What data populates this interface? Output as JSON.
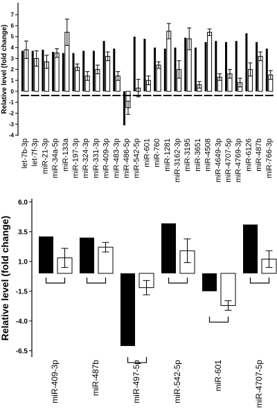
{
  "chart_data": [
    {
      "type": "bar",
      "ylabel": "Relative level (fold change)",
      "ylim": [
        -4,
        7
      ],
      "yticks": [
        "-4",
        "-3",
        "-2",
        "-1",
        "0",
        "1",
        "2",
        "3",
        "4",
        "5",
        "6",
        "7"
      ],
      "categories": [
        "let-7b-3p",
        "let-7f-3p",
        "miR-21-3p",
        "miR-34a-5p",
        "miR-133a",
        "miR-197-3p",
        "miR-324-3p",
        "miR-331-3p",
        "miR-409-3p",
        "miR-483-3p",
        "miR-486-5p",
        "miR-542-5p",
        "miR-601",
        "miR-760",
        "miR-1281",
        "miR-3162-3p",
        "miR-3195",
        "miR-3651",
        "miR-4508",
        "miR-4649-3p",
        "miR-4707-5p",
        "miR-4769-3p",
        "miR-6126",
        "miR-487b",
        "miR-766-3p"
      ],
      "series": [
        {
          "values": [
            3.7,
            3.7,
            3.8,
            3.6,
            3.5,
            3.5,
            3.7,
            3.7,
            4.6,
            3.9,
            -3.1,
            5.0,
            4.8,
            4.0,
            3.9,
            4.0,
            4.9,
            4.0,
            4.5,
            4.6,
            4.5,
            4.6,
            5.3,
            4.5,
            3.9
          ]
        },
        {
          "values": [
            3.8,
            3.0,
            2.7,
            3.5,
            5.4,
            2.2,
            1.4,
            2.0,
            3.2,
            1.4,
            -1.5,
            0.3,
            1.0,
            2.4,
            5.5,
            2.0,
            4.8,
            0.6,
            5.4,
            1.3,
            1.6,
            0.8,
            2.0,
            3.2,
            1.5
          ]
        }
      ],
      "errors": [
        0.8,
        0.7,
        0.6,
        0.4,
        1.2,
        0.3,
        0.4,
        0.4,
        0.4,
        0.4,
        0.6,
        0.8,
        0.4,
        0.3,
        0.7,
        0.8,
        1.0,
        0.3,
        0.3,
        0.3,
        0.4,
        0.4,
        0.6,
        0.4,
        0.4
      ]
    },
    {
      "type": "bar",
      "ylabel": "Relative level (fold change)",
      "ylim": [
        -6.5,
        6
      ],
      "yticks": [
        "-6.5",
        "-4.0",
        "-1.5",
        "1.0",
        "3.5",
        "6.0"
      ],
      "categories": [
        "miR-409-3p",
        "miR-487b",
        "miR-497-5p",
        "miR-542-5p",
        "miR-601",
        "miR-4707-5p"
      ],
      "series": [
        {
          "values": [
            3.1,
            3.0,
            -6.1,
            4.2,
            -1.5,
            4.1
          ]
        },
        {
          "values": [
            1.3,
            2.2,
            -1.2,
            1.9,
            -2.7,
            1.2
          ]
        }
      ],
      "errors": [
        0.8,
        0.4,
        0.6,
        1.0,
        0.4,
        0.7
      ]
    }
  ]
}
